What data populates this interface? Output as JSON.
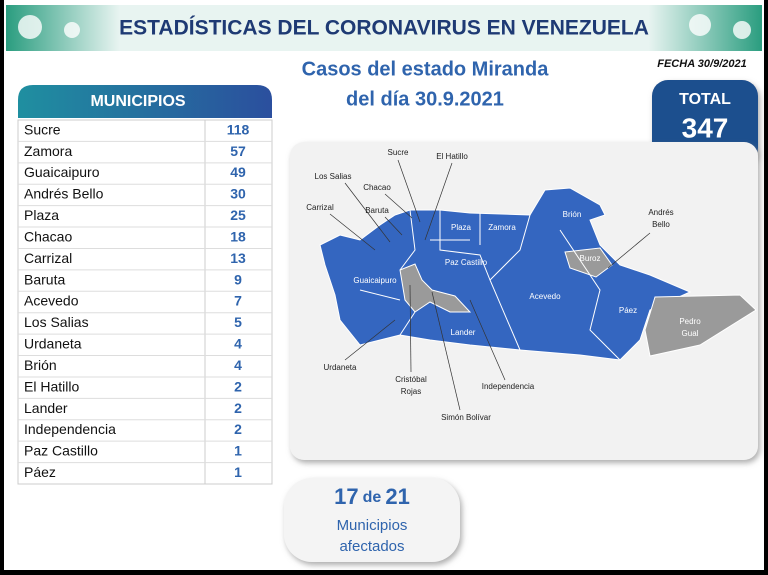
{
  "header": {
    "title": "ESTADÍSTICAS DEL CORONAVIRUS EN VENEZUELA"
  },
  "subtitle": {
    "line1": "Casos del estado Miranda",
    "line2": "del día 30.9.2021"
  },
  "date": "FECHA 30/9/2021",
  "total": {
    "label": "TOTAL",
    "value": 347
  },
  "table": {
    "header": "MUNICIPIOS",
    "rows": [
      [
        "Sucre",
        118
      ],
      [
        "Zamora",
        57
      ],
      [
        "Guaicaipuro",
        49
      ],
      [
        "Andrés Bello",
        30
      ],
      [
        "Plaza",
        25
      ],
      [
        "Chacao",
        18
      ],
      [
        "Carrizal",
        13
      ],
      [
        "Baruta",
        9
      ],
      [
        "Acevedo",
        7
      ],
      [
        "Los Salias",
        5
      ],
      [
        "Urdaneta",
        4
      ],
      [
        "Brión",
        4
      ],
      [
        "El Hatillo",
        2
      ],
      [
        "Lander",
        2
      ],
      [
        "Independencia",
        2
      ],
      [
        "Paz Castillo",
        1
      ],
      [
        "Páez",
        1
      ]
    ]
  },
  "map": {
    "labels": [
      [
        "Sucre"
      ],
      [
        "El Hatillo"
      ],
      [
        "Los Salias"
      ],
      [
        "Chacao"
      ],
      [
        "Carrizal"
      ],
      [
        "Baruta"
      ],
      [
        "Andrés",
        "Bello"
      ],
      [
        "Brión"
      ],
      [
        "Plaza"
      ],
      [
        "Zamora"
      ],
      [
        "Buroz"
      ],
      [
        "Paz Castillo"
      ],
      [
        "Guaicaipuro"
      ],
      [
        "Acevedo"
      ],
      [
        "Páez"
      ],
      [
        "Pedro",
        "Gual"
      ],
      [
        "Lander"
      ],
      [
        "Urdaneta"
      ],
      [
        "Independencia"
      ],
      [
        "Cristóbal",
        "Rojas"
      ],
      [
        "Simón Bolívar"
      ]
    ]
  },
  "summary": {
    "affected": 17,
    "of": "de",
    "total": 21,
    "line1": "Municipios",
    "line2": "afectados"
  }
}
